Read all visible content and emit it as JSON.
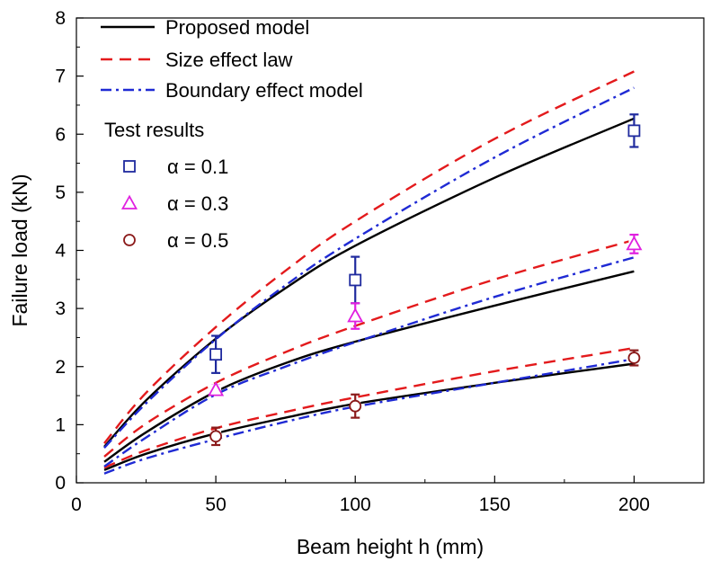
{
  "chart_data": {
    "type": "line",
    "title": "",
    "xlabel": "Beam height h (mm)",
    "ylabel": "Failure load (kN)",
    "xlim": [
      0,
      225
    ],
    "ylim": [
      0,
      8
    ],
    "xticks": [
      0,
      50,
      100,
      150,
      200
    ],
    "yticks": [
      0,
      1,
      2,
      3,
      4,
      5,
      6,
      7,
      8
    ],
    "grid": false,
    "legend_position": "top-left",
    "legend_section_title": "Test results",
    "model_series": [
      {
        "name": "Proposed model",
        "style": "solid",
        "color": "#000000",
        "curves": [
          {
            "group": "0.1",
            "x": [
              10,
              25,
              50,
              75,
              100,
              150,
              200
            ],
            "y": [
              0.62,
              1.42,
              2.48,
              3.35,
              4.08,
              5.25,
              6.27
            ]
          },
          {
            "group": "0.3",
            "x": [
              10,
              25,
              50,
              75,
              100,
              150,
              200
            ],
            "y": [
              0.36,
              0.87,
              1.57,
              2.06,
              2.43,
              3.05,
              3.64
            ]
          },
          {
            "group": "0.5",
            "x": [
              10,
              25,
              50,
              75,
              100,
              150,
              200
            ],
            "y": [
              0.22,
              0.5,
              0.85,
              1.12,
              1.36,
              1.72,
              2.05
            ]
          }
        ]
      },
      {
        "name": "Size effect law",
        "style": "dashed",
        "color": "#e31a1c",
        "curves": [
          {
            "group": "0.1",
            "x": [
              10,
              25,
              50,
              75,
              100,
              150,
              200
            ],
            "y": [
              0.68,
              1.55,
              2.68,
              3.65,
              4.5,
              5.92,
              7.08
            ]
          },
          {
            "group": "0.3",
            "x": [
              10,
              25,
              50,
              75,
              100,
              150,
              200
            ],
            "y": [
              0.45,
              1.02,
              1.72,
              2.25,
              2.7,
              3.5,
              4.18
            ]
          },
          {
            "group": "0.5",
            "x": [
              10,
              25,
              50,
              75,
              100,
              150,
              200
            ],
            "y": [
              0.26,
              0.56,
              0.94,
              1.22,
              1.47,
              1.92,
              2.32
            ]
          }
        ]
      },
      {
        "name": "Boundary effect model",
        "style": "dash-dot",
        "color": "#1f2ad4",
        "curves": [
          {
            "group": "0.1",
            "x": [
              10,
              25,
              50,
              75,
              100,
              150,
              200
            ],
            "y": [
              0.6,
              1.37,
              2.47,
              3.4,
              4.2,
              5.6,
              6.8
            ]
          },
          {
            "group": "0.3",
            "x": [
              10,
              25,
              50,
              75,
              100,
              150,
              200
            ],
            "y": [
              0.28,
              0.78,
              1.52,
              2.0,
              2.42,
              3.2,
              3.88
            ]
          },
          {
            "group": "0.5",
            "x": [
              10,
              25,
              50,
              75,
              100,
              150,
              200
            ],
            "y": [
              0.16,
              0.42,
              0.75,
              1.05,
              1.31,
              1.72,
              2.13
            ]
          }
        ]
      }
    ],
    "test_series": [
      {
        "name": "α = 0.1",
        "marker": "square",
        "color": "#1f2a9e",
        "x": [
          50,
          100,
          200
        ],
        "y": [
          2.21,
          3.49,
          6.06
        ],
        "err": [
          0.32,
          0.4,
          0.28
        ]
      },
      {
        "name": "α = 0.3",
        "marker": "triangle",
        "color": "#e020e0",
        "x": [
          50,
          100,
          200
        ],
        "y": [
          1.6,
          2.87,
          4.11
        ],
        "err": [
          0.08,
          0.22,
          0.16
        ]
      },
      {
        "name": "α = 0.5",
        "marker": "circle",
        "color": "#8b1a1a",
        "x": [
          50,
          100,
          200
        ],
        "y": [
          0.8,
          1.32,
          2.15
        ],
        "err": [
          0.15,
          0.2,
          0.13
        ]
      }
    ]
  }
}
